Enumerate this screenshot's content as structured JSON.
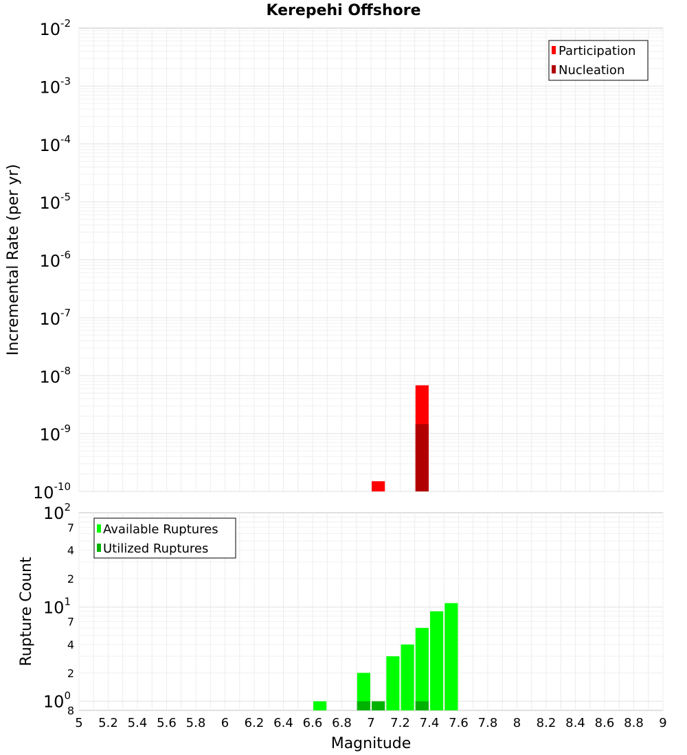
{
  "chart_data": [
    {
      "type": "bar",
      "title": "Kerepehi Offshore",
      "ylabel": "Incremental Rate (per yr)",
      "yscale": "log",
      "ylim_exponents": [
        -10,
        -2
      ],
      "y_tick_base": "10",
      "y_tick_exponents": [
        "-2",
        "-3",
        "-4",
        "-5",
        "-6",
        "-7",
        "-8",
        "-9",
        "-10"
      ],
      "xlim": [
        5,
        9
      ],
      "bin_width": 0.1,
      "legend": {
        "placement": "top-right",
        "entries": [
          {
            "label": "Participation",
            "color": "#ff0000"
          },
          {
            "label": "Nucleation",
            "color": "#b20000"
          }
        ]
      },
      "series": [
        {
          "name": "Participation",
          "color": "#ff0000",
          "points": [
            {
              "x": 7.05,
              "y": 1.5e-10
            },
            {
              "x": 7.35,
              "y": 6.8e-09
            }
          ]
        },
        {
          "name": "Nucleation",
          "color": "#b20000",
          "points": [
            {
              "x": 7.35,
              "y": 1.45e-09
            }
          ]
        }
      ]
    },
    {
      "type": "bar",
      "ylabel": "Rupture Count",
      "xlabel": "Magnitude",
      "yscale": "log",
      "ylim": [
        0.8,
        100
      ],
      "y_major_ticks": [
        {
          "value": 100,
          "base": "10",
          "exp": "2"
        },
        {
          "value": 10,
          "base": "10",
          "exp": "1"
        },
        {
          "value": 1,
          "base": "10",
          "exp": "0"
        }
      ],
      "y_minor_ticks": [
        {
          "value": 70,
          "label": "7"
        },
        {
          "value": 40,
          "label": "4"
        },
        {
          "value": 20,
          "label": "2"
        },
        {
          "value": 7,
          "label": "7"
        },
        {
          "value": 4,
          "label": "4"
        },
        {
          "value": 2,
          "label": "2"
        },
        {
          "value": 0.8,
          "label": "8"
        }
      ],
      "x_ticks": [
        "5",
        "5.2",
        "5.4",
        "5.6",
        "5.8",
        "6",
        "6.2",
        "6.4",
        "6.6",
        "6.8",
        "7",
        "7.2",
        "7.4",
        "7.6",
        "7.8",
        "8",
        "8.2",
        "8.4",
        "8.6",
        "8.8",
        "9"
      ],
      "xlim": [
        5,
        9
      ],
      "bin_width": 0.1,
      "legend": {
        "placement": "top-left",
        "entries": [
          {
            "label": "Available Ruptures",
            "color": "#00ff00"
          },
          {
            "label": "Utilized Ruptures",
            "color": "#00b200"
          }
        ]
      },
      "series": [
        {
          "name": "Available Ruptures",
          "color": "#00ff00",
          "points": [
            {
              "x": 6.65,
              "y": 1
            },
            {
              "x": 6.95,
              "y": 2
            },
            {
              "x": 7.15,
              "y": 3
            },
            {
              "x": 7.25,
              "y": 4
            },
            {
              "x": 7.35,
              "y": 6
            },
            {
              "x": 7.45,
              "y": 9
            },
            {
              "x": 7.55,
              "y": 11
            }
          ]
        },
        {
          "name": "Utilized Ruptures",
          "color": "#00b200",
          "points": [
            {
              "x": 6.95,
              "y": 1
            },
            {
              "x": 7.05,
              "y": 1
            },
            {
              "x": 7.35,
              "y": 1
            }
          ]
        }
      ]
    }
  ]
}
